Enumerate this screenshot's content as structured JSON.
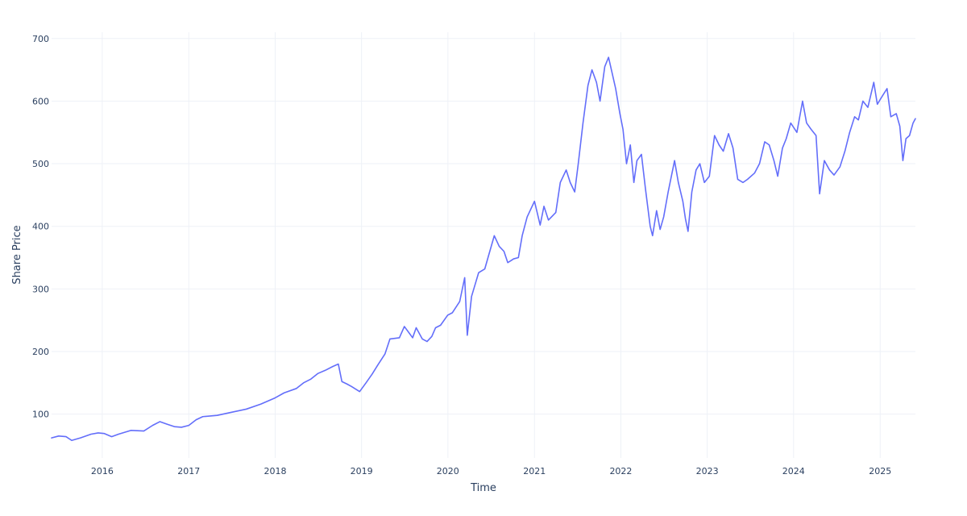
{
  "chart_data": {
    "type": "line",
    "title": "",
    "xlabel": "Time",
    "ylabel": "Share Price",
    "xlim": [
      "2015-06-01",
      "2025-05-30"
    ],
    "ylim": [
      30,
      710
    ],
    "grid": true,
    "legend": "none",
    "colors": {
      "line": "#636efa",
      "grid": "#eef1f7",
      "text": "#2a3f5f",
      "background": "#ffffff"
    },
    "x_ticks": [
      {
        "label": "2016",
        "date": "2016-01-01"
      },
      {
        "label": "2017",
        "date": "2017-01-01"
      },
      {
        "label": "2018",
        "date": "2018-01-01"
      },
      {
        "label": "2019",
        "date": "2019-01-01"
      },
      {
        "label": "2020",
        "date": "2020-01-01"
      },
      {
        "label": "2021",
        "date": "2021-01-01"
      },
      {
        "label": "2022",
        "date": "2022-01-01"
      },
      {
        "label": "2023",
        "date": "2023-01-01"
      },
      {
        "label": "2024",
        "date": "2024-01-01"
      },
      {
        "label": "2025",
        "date": "2025-01-01"
      }
    ],
    "y_ticks": [
      {
        "label": "100",
        "value": 100
      },
      {
        "label": "200",
        "value": 200
      },
      {
        "label": "300",
        "value": 300
      },
      {
        "label": "400",
        "value": 400
      },
      {
        "label": "500",
        "value": 500
      },
      {
        "label": "600",
        "value": 600
      },
      {
        "label": "700",
        "value": 700
      }
    ],
    "series": [
      {
        "points": [
          [
            "2015-06-01",
            62
          ],
          [
            "2015-07-01",
            65
          ],
          [
            "2015-08-01",
            64
          ],
          [
            "2015-08-25",
            58
          ],
          [
            "2015-10-01",
            62
          ],
          [
            "2015-11-15",
            68
          ],
          [
            "2015-12-15",
            70
          ],
          [
            "2016-01-10",
            69
          ],
          [
            "2016-02-10",
            64
          ],
          [
            "2016-03-10",
            68
          ],
          [
            "2016-05-01",
            74
          ],
          [
            "2016-06-25",
            73
          ],
          [
            "2016-08-01",
            82
          ],
          [
            "2016-09-01",
            88
          ],
          [
            "2016-10-01",
            84
          ],
          [
            "2016-11-01",
            80
          ],
          [
            "2016-12-01",
            79
          ],
          [
            "2017-01-01",
            82
          ],
          [
            "2017-02-01",
            91
          ],
          [
            "2017-03-01",
            96
          ],
          [
            "2017-05-01",
            98
          ],
          [
            "2017-07-01",
            103
          ],
          [
            "2017-09-01",
            108
          ],
          [
            "2017-11-01",
            116
          ],
          [
            "2018-01-01",
            126
          ],
          [
            "2018-02-08",
            134
          ],
          [
            "2018-04-01",
            141
          ],
          [
            "2018-05-01",
            150
          ],
          [
            "2018-06-01",
            156
          ],
          [
            "2018-07-01",
            165
          ],
          [
            "2018-08-01",
            170
          ],
          [
            "2018-09-01",
            176
          ],
          [
            "2018-09-25",
            180
          ],
          [
            "2018-10-10",
            152
          ],
          [
            "2018-11-01",
            148
          ],
          [
            "2018-11-20",
            144
          ],
          [
            "2018-12-24",
            136
          ],
          [
            "2019-01-20",
            150
          ],
          [
            "2019-02-15",
            164
          ],
          [
            "2019-03-10",
            178
          ],
          [
            "2019-04-10",
            196
          ],
          [
            "2019-05-01",
            220
          ],
          [
            "2019-06-10",
            222
          ],
          [
            "2019-07-01",
            240
          ],
          [
            "2019-08-05",
            222
          ],
          [
            "2019-08-20",
            238
          ],
          [
            "2019-09-15",
            220
          ],
          [
            "2019-10-05",
            216
          ],
          [
            "2019-10-25",
            224
          ],
          [
            "2019-11-10",
            238
          ],
          [
            "2019-12-01",
            242
          ],
          [
            "2019-12-31",
            258
          ],
          [
            "2020-01-20",
            262
          ],
          [
            "2020-02-20",
            280
          ],
          [
            "2020-03-12",
            318
          ],
          [
            "2020-03-23",
            226
          ],
          [
            "2020-04-10",
            288
          ],
          [
            "2020-05-10",
            326
          ],
          [
            "2020-06-05",
            332
          ],
          [
            "2020-06-20",
            352
          ],
          [
            "2020-07-15",
            385
          ],
          [
            "2020-08-05",
            368
          ],
          [
            "2020-08-25",
            360
          ],
          [
            "2020-09-10",
            342
          ],
          [
            "2020-10-05",
            348
          ],
          [
            "2020-10-25",
            350
          ],
          [
            "2020-11-10",
            385
          ],
          [
            "2020-12-01",
            415
          ],
          [
            "2021-01-01",
            440
          ],
          [
            "2021-01-25",
            402
          ],
          [
            "2021-02-10",
            432
          ],
          [
            "2021-03-01",
            410
          ],
          [
            "2021-04-01",
            422
          ],
          [
            "2021-04-20",
            470
          ],
          [
            "2021-05-15",
            490
          ],
          [
            "2021-06-01",
            470
          ],
          [
            "2021-06-20",
            455
          ],
          [
            "2021-07-05",
            500
          ],
          [
            "2021-07-25",
            565
          ],
          [
            "2021-08-15",
            625
          ],
          [
            "2021-09-01",
            650
          ],
          [
            "2021-09-20",
            630
          ],
          [
            "2021-10-05",
            600
          ],
          [
            "2021-10-25",
            655
          ],
          [
            "2021-11-10",
            670
          ],
          [
            "2021-11-25",
            645
          ],
          [
            "2021-12-10",
            620
          ],
          [
            "2021-12-28",
            580
          ],
          [
            "2022-01-10",
            555
          ],
          [
            "2022-01-25",
            500
          ],
          [
            "2022-02-10",
            530
          ],
          [
            "2022-02-25",
            470
          ],
          [
            "2022-03-10",
            505
          ],
          [
            "2022-03-29",
            515
          ],
          [
            "2022-04-15",
            460
          ],
          [
            "2022-05-05",
            400
          ],
          [
            "2022-05-15",
            385
          ],
          [
            "2022-06-01",
            425
          ],
          [
            "2022-06-16",
            395
          ],
          [
            "2022-07-01",
            415
          ],
          [
            "2022-07-20",
            455
          ],
          [
            "2022-08-16",
            505
          ],
          [
            "2022-09-01",
            470
          ],
          [
            "2022-09-20",
            440
          ],
          [
            "2022-10-01",
            412
          ],
          [
            "2022-10-12",
            392
          ],
          [
            "2022-10-28",
            455
          ],
          [
            "2022-11-15",
            490
          ],
          [
            "2022-12-01",
            500
          ],
          [
            "2022-12-20",
            470
          ],
          [
            "2023-01-10",
            480
          ],
          [
            "2023-02-01",
            545
          ],
          [
            "2023-02-20",
            530
          ],
          [
            "2023-03-10",
            520
          ],
          [
            "2023-04-01",
            548
          ],
          [
            "2023-04-20",
            525
          ],
          [
            "2023-05-10",
            475
          ],
          [
            "2023-06-01",
            470
          ],
          [
            "2023-06-20",
            475
          ],
          [
            "2023-07-20",
            485
          ],
          [
            "2023-08-10",
            500
          ],
          [
            "2023-09-01",
            535
          ],
          [
            "2023-09-20",
            530
          ],
          [
            "2023-10-10",
            505
          ],
          [
            "2023-10-26",
            480
          ],
          [
            "2023-11-15",
            525
          ],
          [
            "2023-12-01",
            540
          ],
          [
            "2023-12-20",
            565
          ],
          [
            "2024-01-15",
            550
          ],
          [
            "2024-02-08",
            600
          ],
          [
            "2024-02-25",
            565
          ],
          [
            "2024-03-15",
            555
          ],
          [
            "2024-04-05",
            545
          ],
          [
            "2024-04-20",
            452
          ],
          [
            "2024-05-10",
            505
          ],
          [
            "2024-06-01",
            490
          ],
          [
            "2024-06-20",
            482
          ],
          [
            "2024-07-15",
            495
          ],
          [
            "2024-08-05",
            520
          ],
          [
            "2024-08-25",
            550
          ],
          [
            "2024-09-15",
            575
          ],
          [
            "2024-10-01",
            570
          ],
          [
            "2024-10-20",
            600
          ],
          [
            "2024-11-10",
            590
          ],
          [
            "2024-12-05",
            630
          ],
          [
            "2024-12-20",
            595
          ],
          [
            "2025-01-10",
            608
          ],
          [
            "2025-01-30",
            620
          ],
          [
            "2025-02-15",
            575
          ],
          [
            "2025-03-10",
            580
          ],
          [
            "2025-03-25",
            560
          ],
          [
            "2025-04-07",
            505
          ],
          [
            "2025-04-20",
            540
          ],
          [
            "2025-05-05",
            545
          ],
          [
            "2025-05-20",
            565
          ],
          [
            "2025-05-30",
            572
          ]
        ]
      }
    ]
  }
}
